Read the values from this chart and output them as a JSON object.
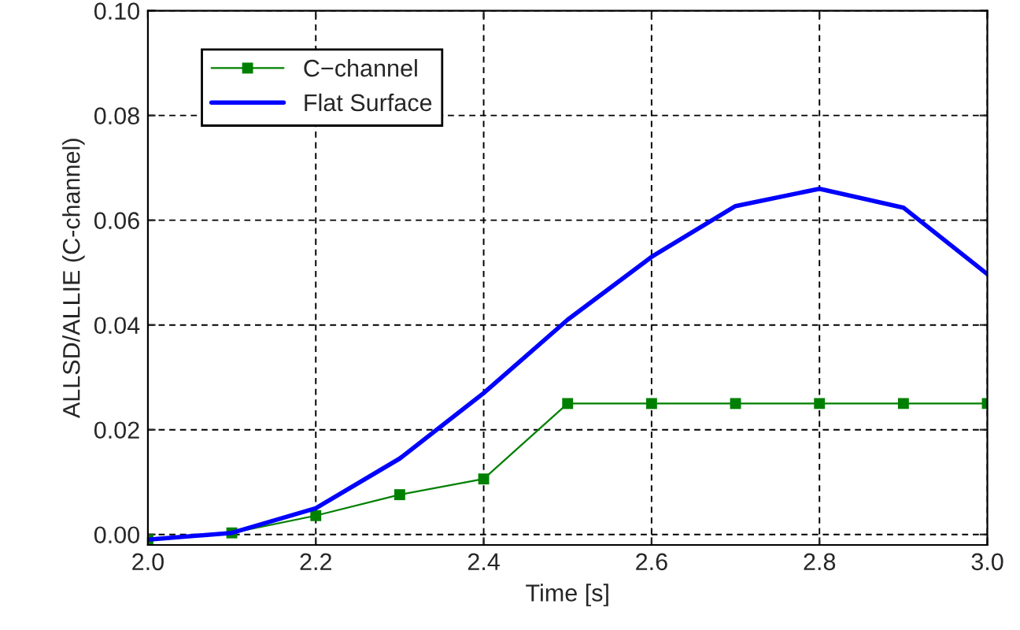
{
  "chart_data": {
    "type": "line",
    "xlabel": "Time [s]",
    "ylabel": "ALLSD/ALLIE (C-channel)",
    "x": [
      2.0,
      2.1,
      2.2,
      2.3,
      2.4,
      2.5,
      2.6,
      2.7,
      2.8,
      2.9,
      3.0
    ],
    "series": [
      {
        "name": "C−channel",
        "color": "#008000",
        "marker": "square",
        "values": [
          -0.001,
          0.0003,
          0.0036,
          0.0076,
          0.0106,
          0.025,
          0.025,
          0.025,
          0.025,
          0.025,
          0.025
        ]
      },
      {
        "name": "Flat Surface",
        "color": "#0000ff",
        "marker": "none",
        "values": [
          -0.001,
          0.0003,
          0.005,
          0.0145,
          0.027,
          0.041,
          0.053,
          0.0627,
          0.066,
          0.0624,
          0.0497
        ]
      }
    ],
    "xlim": [
      2.0,
      3.0
    ],
    "xticks": [
      {
        "value": 2.0,
        "label": "2.0"
      },
      {
        "value": 2.2,
        "label": "2.2"
      },
      {
        "value": 2.4,
        "label": "2.4"
      },
      {
        "value": 2.6,
        "label": "2.6"
      },
      {
        "value": 2.8,
        "label": "2.8"
      },
      {
        "value": 3.0,
        "label": "3.0"
      }
    ],
    "ylim": [
      -0.002,
      0.1
    ],
    "yticks": [
      {
        "value": 0,
        "label": "0.00"
      },
      {
        "value": 0.02,
        "label": "0.02"
      },
      {
        "value": 0.04,
        "label": "0.04"
      },
      {
        "value": 0.06,
        "label": "0.06"
      },
      {
        "value": 0.08,
        "label": "0.08"
      },
      {
        "value": 0.1,
        "label": "0.10"
      }
    ],
    "grid": true,
    "legend": "top left"
  }
}
